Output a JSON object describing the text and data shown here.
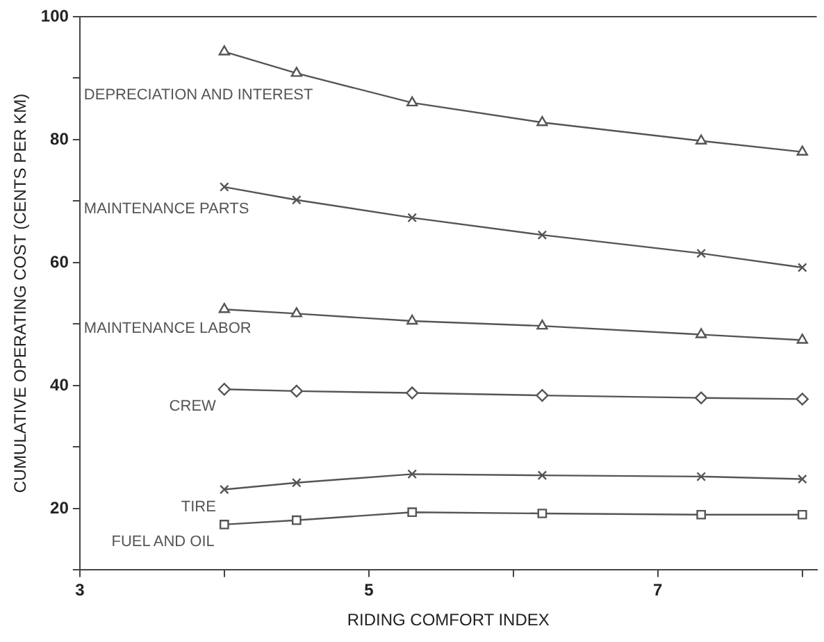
{
  "chart_data": {
    "type": "line",
    "xlabel": "RIDING COMFORT INDEX",
    "ylabel": "CUMULATIVE OPERATING COST (CENTS PER KM)",
    "x": [
      4,
      4.5,
      5.3,
      6.2,
      7.3,
      8
    ],
    "xlim": [
      3,
      8.1
    ],
    "xticks": [
      3,
      {
        "value": 4,
        "label": null
      },
      5,
      {
        "value": 6,
        "label": null
      },
      7,
      {
        "value": 8,
        "label": null
      }
    ],
    "ylim": [
      10,
      100
    ],
    "yticks": [
      {
        "value": 10,
        "label": null
      },
      20,
      {
        "value": 30,
        "label": null
      },
      40,
      {
        "value": 50,
        "label": null
      },
      60,
      {
        "value": 70,
        "label": null
      },
      80,
      {
        "value": 90,
        "label": null
      },
      100
    ],
    "grid": false,
    "legend": false,
    "line_style": "solid",
    "series": [
      {
        "name": "DEPRECIATION AND INTEREST",
        "color": "#555555",
        "marker": "triangle",
        "values": [
          94.3,
          90.8,
          86,
          82.8,
          79.8,
          78
        ]
      },
      {
        "name": "MAINTENANCE PARTS",
        "color": "#555555",
        "marker": "cross",
        "values": [
          72.3,
          70.2,
          67.3,
          64.5,
          61.5,
          59.2
        ]
      },
      {
        "name": "MAINTENANCE LABOR",
        "color": "#555555",
        "marker": "triangle",
        "values": [
          52.4,
          51.7,
          50.5,
          49.7,
          48.3,
          47.4
        ]
      },
      {
        "name": "CREW",
        "color": "#555555",
        "marker": "diamond",
        "values": [
          39.4,
          39.1,
          38.8,
          38.4,
          38,
          37.8
        ]
      },
      {
        "name": "TIRE",
        "color": "#555555",
        "marker": "cross",
        "values": [
          23.1,
          24.2,
          25.6,
          25.4,
          25.2,
          24.8
        ]
      },
      {
        "name": "FUEL AND OIL",
        "color": "#555555",
        "marker": "square",
        "values": [
          17.4,
          18.1,
          19.4,
          19.2,
          19,
          19
        ]
      }
    ]
  }
}
